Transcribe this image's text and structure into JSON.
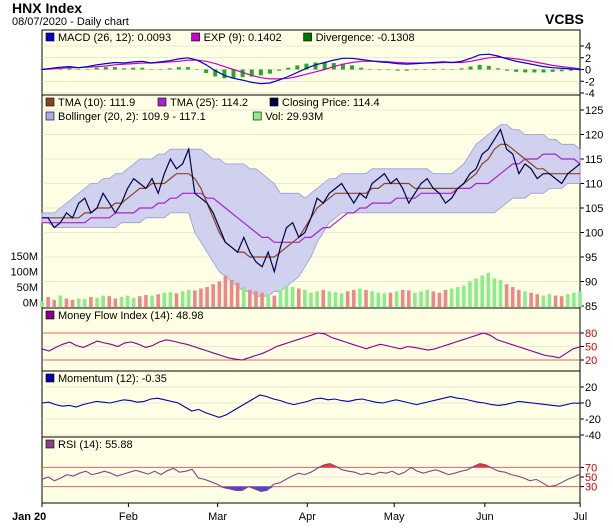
{
  "header": {
    "title": "HNX Index",
    "subtitle": "08/07/2020 - Daily chart",
    "brand": "VCBS"
  },
  "chart_data": [
    {
      "panel": "macd",
      "type": "line",
      "ylim": [
        -4,
        4
      ],
      "yticks": [
        "4",
        "2",
        "0",
        "-2",
        "-4"
      ],
      "legend": [
        {
          "label": "MACD (26, 12): 0.0093",
          "color": "#0000cc"
        },
        {
          "label": "EXP (9): 0.1402",
          "color": "#cc00cc"
        },
        {
          "label": "Divergence: -0.1308",
          "color": "#007700"
        }
      ],
      "series": {
        "macd": [
          0,
          0.2,
          0.4,
          0.5,
          0.3,
          0.5,
          0.8,
          1.0,
          1.2,
          1.1,
          1.3,
          1.4,
          1.1,
          1.3,
          1.5,
          1.8,
          2.0,
          1.6,
          0.8,
          -0.2,
          -1.0,
          -1.5,
          -1.8,
          -2.2,
          -2.4,
          -2.3,
          -1.8,
          -1.2,
          -0.5,
          0.2,
          0.8,
          1.2,
          1.6,
          1.9,
          1.9,
          1.7,
          1.5,
          1.3,
          1.2,
          1.0,
          0.9,
          1.0,
          1.1,
          1.2,
          1.3,
          1.2,
          1.4,
          1.9,
          2.5,
          2.6,
          2.3,
          1.8,
          1.4,
          1.1,
          0.8,
          0.5,
          0.3,
          0.2,
          0.1,
          0.0
        ],
        "exp": [
          0,
          0.1,
          0.2,
          0.3,
          0.3,
          0.4,
          0.5,
          0.6,
          0.8,
          0.9,
          1.0,
          1.1,
          1.1,
          1.2,
          1.3,
          1.4,
          1.6,
          1.6,
          1.4,
          1.0,
          0.5,
          0.0,
          -0.5,
          -1.0,
          -1.4,
          -1.6,
          -1.6,
          -1.5,
          -1.2,
          -0.8,
          -0.4,
          0.0,
          0.5,
          0.9,
          1.2,
          1.4,
          1.4,
          1.4,
          1.3,
          1.2,
          1.1,
          1.1,
          1.1,
          1.1,
          1.2,
          1.2,
          1.2,
          1.4,
          1.7,
          2.0,
          2.1,
          2.0,
          1.8,
          1.6,
          1.3,
          1.0,
          0.7,
          0.5,
          0.3,
          0.14
        ]
      }
    },
    {
      "panel": "price",
      "type": "line",
      "ylim": [
        85,
        125
      ],
      "yticks": [
        "125",
        "120",
        "115",
        "110",
        "105",
        "100",
        "95",
        "90",
        "85"
      ],
      "legend": [
        {
          "label": "TMA (10): 111.9",
          "color": "#884422"
        },
        {
          "label": "TMA (25): 114.2",
          "color": "#aa22cc"
        },
        {
          "label": "Closing Price: 114.4",
          "color": "#000044"
        },
        {
          "label": "Bollinger (20, 2): 109.9 - 117.1",
          "color": "#aaaaee"
        },
        {
          "label": "Vol: 29.93M",
          "color": "#88ee88"
        }
      ],
      "volume_ticks": [
        "150M",
        "100M",
        "50M",
        "0M"
      ],
      "volume_max": 200,
      "series": {
        "close": [
          103,
          103,
          101,
          102,
          104,
          103,
          106,
          107,
          104,
          105,
          108,
          106,
          104,
          106,
          109,
          111,
          110,
          109,
          111,
          108,
          112,
          115,
          113,
          114,
          117,
          108,
          107,
          106,
          104,
          101,
          98,
          97,
          96,
          99,
          96,
          94,
          93,
          96,
          92,
          97,
          101,
          102,
          99,
          100,
          103,
          107,
          106,
          108,
          109,
          110,
          108,
          106,
          108,
          107,
          110,
          111,
          112,
          110,
          111,
          109,
          106,
          108,
          110,
          111,
          109,
          108,
          106,
          107,
          109,
          110,
          112,
          113,
          116,
          117,
          119,
          121,
          117,
          116,
          112,
          114,
          113,
          111,
          112,
          112,
          111,
          110,
          112,
          113,
          114
        ],
        "tma10": [
          103,
          103,
          103,
          103,
          103,
          103,
          103,
          104,
          104,
          105,
          105,
          105,
          106,
          106,
          107,
          108,
          109,
          109,
          110,
          110,
          110,
          111,
          112,
          112,
          112,
          111,
          109,
          106,
          103,
          100,
          98,
          97,
          96,
          96,
          95,
          95,
          95,
          95,
          95,
          96,
          97,
          98,
          99,
          101,
          103,
          105,
          106,
          107,
          108,
          108,
          108,
          108,
          108,
          108,
          109,
          109,
          110,
          110,
          110,
          110,
          110,
          109,
          109,
          109,
          109,
          109,
          109,
          109,
          109,
          110,
          111,
          112,
          114,
          115,
          117,
          118,
          118,
          117,
          116,
          115,
          114,
          113,
          113,
          112,
          112,
          112,
          112,
          112,
          112
        ],
        "tma25": [
          102,
          102,
          102,
          102,
          102,
          102,
          102,
          102,
          103,
          103,
          103,
          103,
          104,
          104,
          104,
          104,
          105,
          105,
          105,
          106,
          106,
          107,
          107,
          108,
          108,
          108,
          108,
          107,
          107,
          106,
          105,
          104,
          103,
          102,
          101,
          100,
          99,
          99,
          98,
          98,
          98,
          98,
          98,
          99,
          99,
          100,
          101,
          101,
          102,
          103,
          104,
          104,
          105,
          105,
          106,
          106,
          106,
          106,
          107,
          107,
          107,
          107,
          108,
          108,
          108,
          108,
          108,
          108,
          109,
          109,
          109,
          110,
          110,
          110,
          111,
          112,
          113,
          114,
          114,
          115,
          115,
          115,
          116,
          116,
          116,
          115,
          115,
          115,
          114
        ],
        "bb_upper": [
          104,
          104,
          104,
          105,
          106,
          107,
          108,
          109,
          110,
          110,
          111,
          111,
          112,
          112,
          113,
          114,
          115,
          115,
          115,
          116,
          116,
          117,
          117,
          117,
          117,
          117,
          117,
          116,
          115,
          115,
          114,
          114,
          114,
          114,
          113,
          113,
          112,
          111,
          110,
          108,
          108,
          108,
          108,
          107,
          108,
          109,
          110,
          111,
          111,
          112,
          112,
          112,
          112,
          112,
          113,
          113,
          113,
          113,
          113,
          113,
          113,
          113,
          113,
          113,
          112,
          112,
          112,
          112,
          113,
          114,
          116,
          118,
          119,
          120,
          121,
          122,
          122,
          121,
          121,
          120,
          120,
          120,
          120,
          119,
          119,
          118,
          118,
          118,
          117
        ],
        "bb_lower": [
          102,
          102,
          101,
          101,
          101,
          101,
          101,
          101,
          101,
          101,
          101,
          101,
          101,
          102,
          102,
          102,
          102,
          103,
          103,
          103,
          103,
          104,
          104,
          104,
          104,
          100,
          98,
          96,
          94,
          92,
          91,
          90,
          89,
          88,
          88,
          87,
          87,
          87,
          88,
          88,
          89,
          90,
          91,
          93,
          95,
          98,
          100,
          102,
          103,
          104,
          104,
          104,
          104,
          104,
          104,
          104,
          104,
          104,
          104,
          104,
          104,
          104,
          104,
          104,
          104,
          104,
          104,
          104,
          104,
          104,
          104,
          104,
          104,
          104,
          104,
          105,
          106,
          107,
          107,
          107,
          108,
          108,
          108,
          109,
          109,
          109,
          110,
          110,
          110
        ],
        "volume": [
          20,
          35,
          25,
          40,
          30,
          25,
          30,
          28,
          35,
          32,
          40,
          38,
          30,
          35,
          40,
          32,
          38,
          42,
          40,
          45,
          50,
          52,
          48,
          55,
          60,
          58,
          65,
          70,
          80,
          90,
          110,
          95,
          85,
          70,
          60,
          55,
          50,
          45,
          40,
          60,
          75,
          70,
          65,
          60,
          50,
          55,
          60,
          55,
          52,
          48,
          55,
          60,
          65,
          60,
          55,
          50,
          48,
          50,
          55,
          60,
          58,
          50,
          55,
          60,
          55,
          50,
          60,
          65,
          70,
          75,
          90,
          100,
          110,
          120,
          100,
          95,
          80,
          70,
          60,
          55,
          50,
          45,
          40,
          45,
          40,
          38,
          45,
          50,
          55
        ],
        "volume_up": [
          1,
          0,
          0,
          1,
          0,
          0,
          1,
          1,
          0,
          1,
          1,
          0,
          0,
          1,
          1,
          1,
          0,
          0,
          1,
          0,
          1,
          1,
          0,
          1,
          1,
          0,
          0,
          0,
          0,
          0,
          0,
          0,
          0,
          1,
          0,
          0,
          0,
          1,
          0,
          1,
          1,
          1,
          0,
          1,
          1,
          1,
          0,
          1,
          1,
          1,
          0,
          0,
          1,
          0,
          1,
          1,
          1,
          0,
          1,
          0,
          0,
          1,
          1,
          1,
          0,
          0,
          0,
          1,
          1,
          1,
          1,
          1,
          1,
          1,
          1,
          1,
          0,
          0,
          0,
          1,
          0,
          0,
          1,
          1,
          0,
          0,
          1,
          1,
          1
        ]
      }
    },
    {
      "panel": "mfi",
      "type": "line",
      "ylim": [
        0,
        100
      ],
      "yticks": [
        "80",
        "50",
        "20"
      ],
      "legend": [
        {
          "label": "Money Flow Index (14): 48.98",
          "color": "#880088"
        }
      ],
      "series": {
        "mfi": [
          45,
          40,
          48,
          55,
          60,
          52,
          48,
          55,
          62,
          58,
          55,
          50,
          58,
          60,
          55,
          48,
          52,
          60,
          65,
          62,
          58,
          55,
          50,
          45,
          40,
          35,
          30,
          25,
          22,
          20,
          25,
          30,
          35,
          42,
          50,
          55,
          60,
          65,
          70,
          75,
          80,
          78,
          70,
          65,
          60,
          55,
          50,
          45,
          50,
          55,
          52,
          48,
          45,
          50,
          48,
          45,
          42,
          45,
          50,
          55,
          60,
          65,
          70,
          75,
          80,
          75,
          65,
          60,
          55,
          50,
          45,
          40,
          35,
          30,
          28,
          25,
          35,
          45,
          49
        ]
      }
    },
    {
      "panel": "momentum",
      "type": "line",
      "ylim": [
        -40,
        20
      ],
      "yticks": [
        "20",
        "0",
        "-20",
        "-40"
      ],
      "legend": [
        {
          "label": "Momentum (12): -0.35",
          "color": "#0000aa"
        }
      ],
      "series": {
        "momentum": [
          0,
          1,
          -2,
          -4,
          -3,
          -5,
          -2,
          0,
          2,
          1,
          0,
          2,
          4,
          3,
          1,
          2,
          5,
          6,
          4,
          2,
          0,
          -5,
          -10,
          -8,
          -12,
          -15,
          -18,
          -15,
          -10,
          -5,
          0,
          5,
          10,
          8,
          5,
          3,
          0,
          -2,
          0,
          2,
          5,
          6,
          4,
          5,
          3,
          2,
          4,
          5,
          3,
          1,
          0,
          2,
          4,
          2,
          0,
          -2,
          0,
          2,
          4,
          6,
          8,
          6,
          5,
          3,
          1,
          0,
          -2,
          -3,
          -2,
          0,
          2,
          1,
          0,
          -1,
          -2,
          -3,
          -4,
          -2,
          0,
          -0.35
        ]
      }
    },
    {
      "panel": "rsi",
      "type": "line",
      "ylim": [
        0,
        100
      ],
      "yticks": [
        "70",
        "50",
        "30"
      ],
      "legend": [
        {
          "label": "RSI (14): 55.88",
          "color": "#884488"
        }
      ],
      "series": {
        "rsi": [
          45,
          50,
          42,
          48,
          55,
          52,
          58,
          62,
          55,
          58,
          62,
          58,
          52,
          56,
          60,
          64,
          60,
          56,
          62,
          55,
          63,
          68,
          60,
          62,
          66,
          48,
          45,
          40,
          35,
          28,
          25,
          22,
          22,
          30,
          25,
          20,
          22,
          35,
          38,
          45,
          52,
          58,
          55,
          60,
          68,
          75,
          78,
          72,
          65,
          62,
          60,
          55,
          58,
          55,
          60,
          58,
          62,
          55,
          60,
          70,
          62,
          58,
          62,
          65,
          60,
          55,
          58,
          62,
          65,
          72,
          78,
          75,
          68,
          62,
          60,
          55,
          52,
          48,
          42,
          45,
          38,
          30,
          32,
          38,
          45,
          50,
          56
        ]
      }
    }
  ],
  "xaxis": {
    "labels": [
      "Jan 20",
      "Feb",
      "Mar",
      "Apr",
      "May",
      "Jun",
      "Jul"
    ],
    "positions": [
      0,
      0.183,
      0.372,
      0.562,
      0.746,
      0.938,
      1.14
    ]
  }
}
